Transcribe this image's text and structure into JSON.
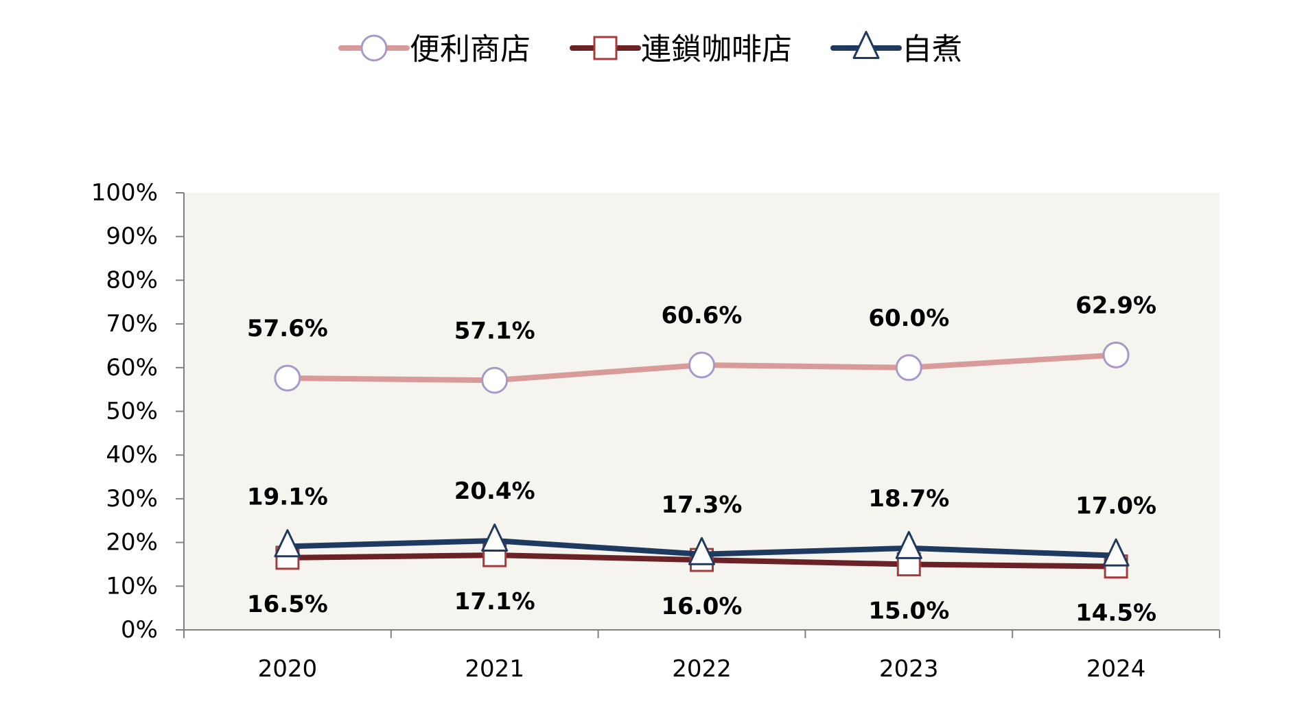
{
  "chart_data": {
    "type": "line",
    "x": [
      "2020",
      "2021",
      "2022",
      "2023",
      "2024"
    ],
    "ylim": [
      0,
      100
    ],
    "y_ticks": [
      "0%",
      "10%",
      "20%",
      "30%",
      "40%",
      "50%",
      "60%",
      "70%",
      "80%",
      "90%",
      "100%"
    ],
    "y_tick_values": [
      0,
      10,
      20,
      30,
      40,
      50,
      60,
      70,
      80,
      90,
      100
    ],
    "grid": false,
    "legend_position": "top-center",
    "plot_background": "#f5f4ef",
    "series": [
      {
        "name": "便利商店",
        "values": [
          57.6,
          57.1,
          60.6,
          60.0,
          62.9
        ],
        "labels": [
          "57.6%",
          "57.1%",
          "60.6%",
          "60.0%",
          "62.9%"
        ],
        "label_position": "above",
        "color": "#d99a9a",
        "marker": "circle",
        "marker_stroke": "#a898c8",
        "marker_fill": "#ffffff"
      },
      {
        "name": "連鎖咖啡店",
        "values": [
          16.5,
          17.1,
          16.0,
          15.0,
          14.5
        ],
        "labels": [
          "16.5%",
          "17.1%",
          "16.0%",
          "15.0%",
          "14.5%"
        ],
        "label_position": "below",
        "color": "#6b2226",
        "marker": "square",
        "marker_stroke": "#a83a3a",
        "marker_fill": "#ffffff"
      },
      {
        "name": "自煮",
        "values": [
          19.1,
          20.4,
          17.3,
          18.7,
          17.0
        ],
        "labels": [
          "19.1%",
          "20.4%",
          "17.3%",
          "18.7%",
          "17.0%"
        ],
        "label_position": "above",
        "color": "#1f3a60",
        "marker": "triangle",
        "marker_stroke": "#1f3a60",
        "marker_fill": "#ffffff"
      }
    ]
  }
}
